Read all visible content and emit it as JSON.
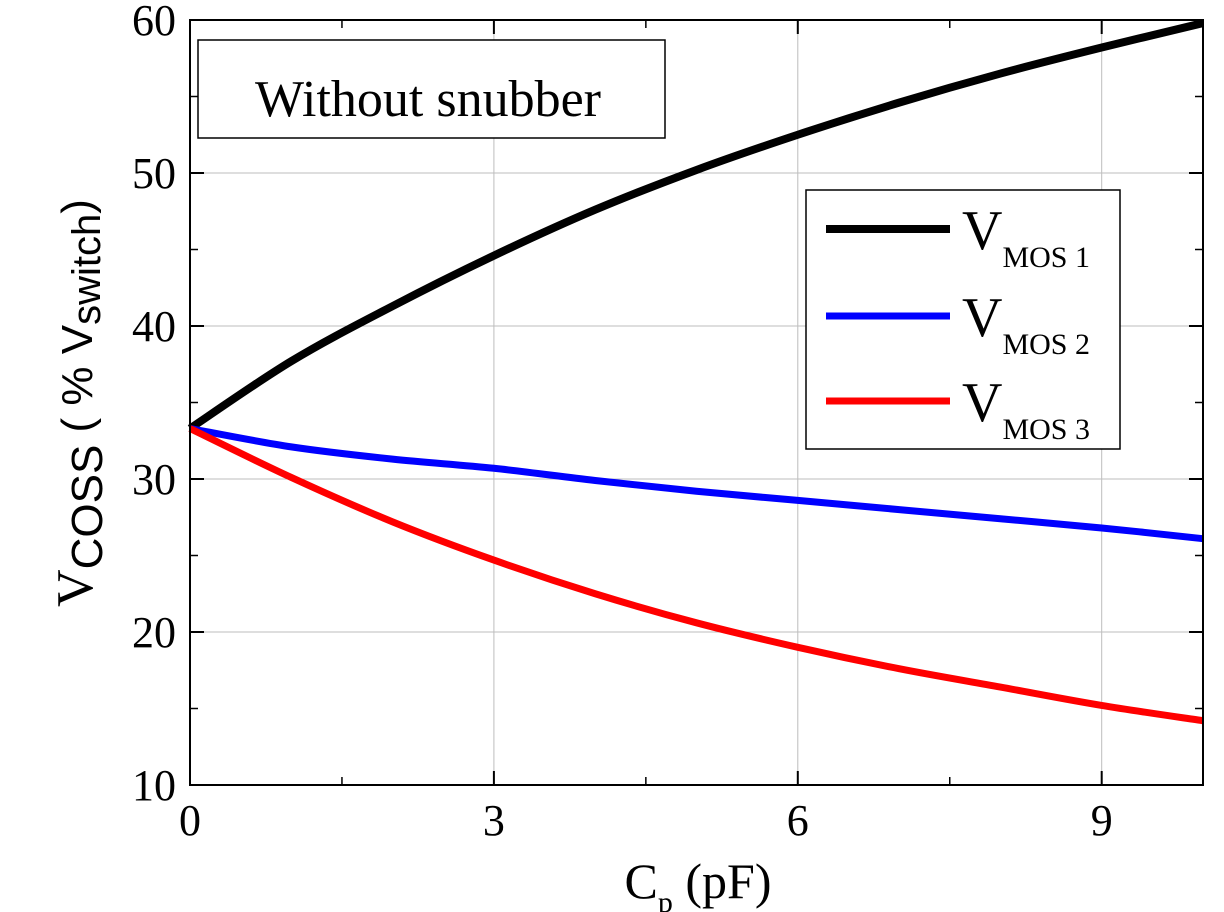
{
  "chart_data": {
    "type": "line",
    "annotation": "Without snubber",
    "xlabel": {
      "main": "C",
      "sub": "p",
      "rest": " (pF)"
    },
    "ylabel": {
      "main": "V",
      "sub": "COSS",
      "pre_rest": " ( % ",
      "rest_main": "V",
      "rest_sub": "switch",
      "post_rest": ")"
    },
    "xlim": [
      0,
      10
    ],
    "ylim": [
      10,
      60
    ],
    "xticks": [
      0,
      3,
      6,
      9
    ],
    "xtick_labels": [
      "0",
      "3",
      "6",
      "9"
    ],
    "yticks": [
      10,
      20,
      30,
      40,
      50,
      60
    ],
    "ytick_labels": [
      "10",
      "20",
      "30",
      "40",
      "50",
      "60"
    ],
    "grid": true,
    "legend_position": "right",
    "x": [
      0,
      1,
      2,
      3,
      4,
      5,
      6,
      7,
      8,
      9,
      10
    ],
    "series": [
      {
        "legend_main": "V",
        "legend_sub": "MOS 1",
        "color": "#000000",
        "values": [
          33.3,
          37.7,
          41.3,
          44.6,
          47.6,
          50.2,
          52.5,
          54.6,
          56.5,
          58.2,
          59.8
        ]
      },
      {
        "legend_main": "V",
        "legend_sub": "MOS 2",
        "color": "#0000ff",
        "values": [
          33.3,
          32.1,
          31.3,
          30.7,
          29.9,
          29.2,
          28.6,
          28.0,
          27.4,
          26.8,
          26.1
        ]
      },
      {
        "legend_main": "V",
        "legend_sub": "MOS 3",
        "color": "#ff0000",
        "values": [
          33.3,
          30.1,
          27.2,
          24.7,
          22.5,
          20.6,
          19.0,
          17.6,
          16.4,
          15.2,
          14.2
        ]
      }
    ]
  }
}
